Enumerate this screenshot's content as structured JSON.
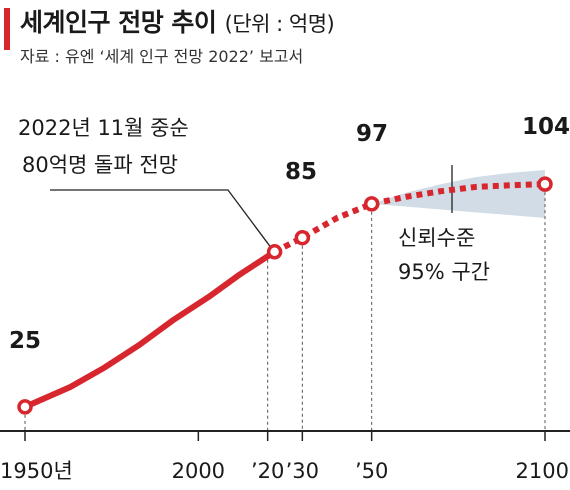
{
  "header": {
    "title": "세계인구 전망 추이",
    "unit": "(단위 : 억명)",
    "source": "자료 : 유엔 ‘세계 인구 전망 2022’ 보고서"
  },
  "annotations": {
    "milestone_line1": "2022년 11월 중순",
    "milestone_line2": "80억명 돌파 전망",
    "ci_line1": "신뢰수준",
    "ci_line2": "95% 구간"
  },
  "colors": {
    "accent": "#d8262e",
    "band": "#c9d6e2"
  },
  "chart_data": {
    "type": "line",
    "title": "세계인구 전망 추이",
    "unit": "억명",
    "x_ticks": [
      {
        "x": 1950,
        "label": "1950년"
      },
      {
        "x": 2000,
        "label": "2000"
      },
      {
        "x": 2020,
        "label": "’20"
      },
      {
        "x": 2030,
        "label": "’30"
      },
      {
        "x": 2050,
        "label": "’50"
      },
      {
        "x": 2100,
        "label": "2100"
      }
    ],
    "xlim": [
      1950,
      2100
    ],
    "ylim": [
      20,
      108
    ],
    "series": [
      {
        "style": "solid",
        "x": [
          1950,
          1963,
          1973,
          1983,
          1993,
          2003,
          2012,
          2022
        ],
        "y": [
          25,
          32,
          39,
          47,
          56,
          64,
          72,
          80
        ]
      },
      {
        "style": "dotted",
        "x": [
          2022,
          2030,
          2040,
          2050,
          2060,
          2070,
          2080,
          2090,
          2100
        ],
        "y": [
          80,
          85,
          92,
          97,
          99.5,
          101.5,
          103,
          103.6,
          104
        ]
      }
    ],
    "confidence_band": {
      "label": "신뢰수준 95% 구간",
      "x": [
        2050,
        2060,
        2070,
        2080,
        2090,
        2100
      ],
      "lower": [
        97,
        96,
        95,
        94,
        93,
        92
      ],
      "upper": [
        97,
        101,
        104,
        106.5,
        108,
        109
      ]
    },
    "markers": [
      {
        "x": 1950,
        "y": 25,
        "label": "25"
      },
      {
        "x": 2022,
        "y": 80
      },
      {
        "x": 2030,
        "y": 85,
        "label": "85"
      },
      {
        "x": 2050,
        "y": 97,
        "label": "97"
      },
      {
        "x": 2100,
        "y": 104,
        "label": "104"
      }
    ]
  }
}
